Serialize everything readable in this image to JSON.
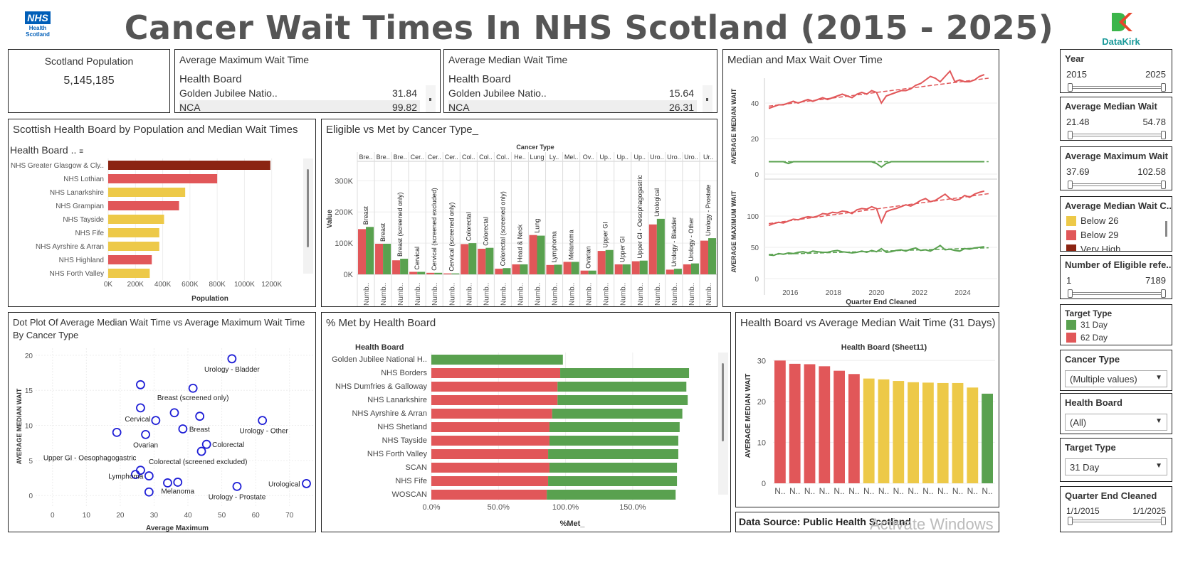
{
  "header": {
    "title": "Cancer Wait Times In NHS Scotland (2015 - 2025)",
    "nhs_logo_text": "NHS",
    "nhs_logo_sub1": "Health",
    "nhs_logo_sub2": "Scotland",
    "datakirk_logo": "DataKirk"
  },
  "kpi_population": {
    "label": "Scotland Population",
    "value": "5,145,185"
  },
  "avg_max_table": {
    "title": "Average Maximum Wait Time",
    "header": "Health Board",
    "rows": [
      {
        "name": "Golden Jubilee Natio..",
        "value": "31.84"
      },
      {
        "name": "NCA",
        "value": "99.82"
      }
    ]
  },
  "avg_median_table": {
    "title": "Average Median Wait Time",
    "header": "Health Board",
    "rows": [
      {
        "name": "Golden Jubilee Natio..",
        "value": "15.64"
      },
      {
        "name": "NCA",
        "value": "26.31"
      }
    ]
  },
  "population_chart": {
    "title": "Scottish Health Board by Population and Median Wait Times",
    "header": "Health Board ..",
    "xlabel": "Population",
    "ticks": [
      "0K",
      "200K",
      "400K",
      "600K",
      "800K",
      "1000K",
      "1200K"
    ],
    "xmax": 1400000,
    "chart_data": {
      "type": "bar",
      "categories": [
        "NHS Greater Glasgow & Cly..",
        "NHS Lothian",
        "NHS Lanarkshire",
        "NHS Grampian",
        "NHS Tayside",
        "NHS Fife",
        "NHS Ayrshire & Arran",
        "NHS Highland",
        "NHS Forth Valley"
      ],
      "values": [
        1190000,
        800000,
        565000,
        520000,
        410000,
        375000,
        375000,
        320000,
        305000
      ],
      "colors": [
        "#8B2412",
        "#E15759",
        "#EDC948",
        "#E15759",
        "#EDC948",
        "#EDC948",
        "#EDC948",
        "#E15759",
        "#EDC948"
      ]
    }
  },
  "eligible_chart": {
    "title": "Eligible vs Met by Cancer Type_",
    "axis_title": "Cancer Type",
    "ylabel": "Value",
    "yticks": [
      "0K",
      "100K",
      "200K",
      "300K"
    ],
    "col_headers": [
      "Bre..",
      "Bre..",
      "Bre..",
      "Cer..",
      "Cer..",
      "Cer..",
      "Col..",
      "Col..",
      "Col..",
      "He..",
      "Lung",
      "Ly..",
      "Mel..",
      "Ov..",
      "Up..",
      "Up..",
      "Up..",
      "Uro..",
      "Uro..",
      "Uro..",
      "Ur.."
    ],
    "bottom_label": "Numb..",
    "chart_data": {
      "type": "bar",
      "categories": [
        "Breast",
        "Breast",
        "Breast (screened only)",
        "Cervical",
        "Cervical (screened excluded)",
        "Cervical (screened only)",
        "Colorectal",
        "Colorectal",
        "Colorectal (screened only)",
        "Head & Neck",
        "Lung",
        "Lymphoma",
        "Melanoma",
        "Ovarian",
        "Upper GI",
        "Upper GI",
        "Upper GI - Oesophagogastric",
        "Urological",
        "Urology - Bladder",
        "Urology - Other",
        "Urology - Prostate"
      ],
      "series": [
        {
          "name": "",
          "values": [
            145000,
            98000,
            45000,
            8000,
            5000,
            3000,
            97000,
            82000,
            18000,
            32000,
            126000,
            30000,
            40000,
            12000,
            75000,
            32000,
            42000,
            160000,
            15000,
            32000,
            108000
          ]
        },
        {
          "name": "",
          "values": [
            152000,
            98000,
            50000,
            8000,
            5000,
            3000,
            100000,
            85000,
            20000,
            32000,
            124000,
            31000,
            40000,
            12000,
            78000,
            32000,
            44000,
            178000,
            18000,
            35000,
            116000
          ]
        }
      ],
      "ymax": 360000
    }
  },
  "median_max_chart": {
    "title": "Median and Max Wait Over Time",
    "ylabel_top": "AVERAGE MEDIAN WAIT",
    "ylabel_bottom": "AVERAGE MAXIMUM WAIT",
    "xlabel": "Quarter End Cleaned",
    "xticks": [
      "2016",
      "2018",
      "2020",
      "2022",
      "2024"
    ],
    "yticks_top": [
      "0",
      "20",
      "40"
    ],
    "yticks_bottom": [
      "0",
      "50",
      "100"
    ],
    "chart_data": {
      "type": "line",
      "x_start": 2015.0,
      "x_end": 2025.0,
      "median_62": [
        37,
        38,
        39,
        39,
        40,
        41,
        40,
        41,
        42,
        41,
        42,
        43,
        42,
        43,
        44,
        45,
        44,
        43,
        45,
        46,
        45,
        47,
        46,
        40,
        44,
        45,
        46,
        47,
        47,
        48,
        50,
        51,
        53,
        55,
        54,
        52,
        55,
        58,
        52,
        53,
        52,
        52,
        53,
        55,
        56
      ],
      "median_31": [
        7,
        7,
        7,
        7,
        6,
        7,
        7,
        7,
        7,
        7,
        7,
        7,
        7,
        7,
        7,
        7,
        7,
        7,
        7,
        7,
        7,
        7,
        6,
        4,
        6,
        7,
        7,
        7,
        7,
        7,
        7,
        7,
        7,
        7,
        7,
        7,
        7,
        7,
        7,
        7,
        7,
        7,
        7,
        7,
        7
      ],
      "max_62": [
        85,
        88,
        90,
        89,
        92,
        95,
        94,
        97,
        99,
        98,
        100,
        104,
        103,
        106,
        105,
        108,
        107,
        104,
        110,
        112,
        111,
        115,
        112,
        90,
        107,
        110,
        112,
        115,
        118,
        116,
        120,
        125,
        128,
        123,
        125,
        130,
        135,
        128,
        125,
        127,
        133,
        130,
        135,
        138,
        140
      ],
      "max_31": [
        38,
        37,
        40,
        39,
        41,
        40,
        42,
        43,
        41,
        44,
        43,
        42,
        42,
        44,
        45,
        43,
        42,
        41,
        42,
        44,
        42,
        45,
        43,
        48,
        42,
        43,
        45,
        46,
        44,
        47,
        49,
        45,
        46,
        44,
        48,
        53,
        46,
        47,
        45,
        44,
        48,
        47,
        49,
        50,
        51
      ]
    }
  },
  "filters": {
    "year": {
      "title": "Year",
      "min": "2015",
      "max": "2025"
    },
    "avg_median": {
      "title": "Average Median Wait",
      "min": "21.48",
      "max": "54.78"
    },
    "avg_max": {
      "title": "Average Maximum Wait",
      "min": "37.69",
      "max": "102.58"
    },
    "median_cat": {
      "title": "Average Median Wait C..",
      "items": [
        {
          "label": "Below 26",
          "color": "#EDC948"
        },
        {
          "label": "Below 29",
          "color": "#E15759"
        },
        {
          "label": "Very High",
          "color": "#8B2412"
        }
      ]
    },
    "eligible": {
      "title": "Number of Eligible refe..",
      "min": "1",
      "max": "7189"
    },
    "target_type_legend": {
      "title": "Target Type",
      "items": [
        {
          "label": "31 Day",
          "color": "#59A14F"
        },
        {
          "label": "62 Day",
          "color": "#E15759"
        }
      ]
    },
    "cancer_type": {
      "title": "Cancer Type",
      "value": "(Multiple values)"
    },
    "health_board": {
      "title": "Health Board",
      "value": "(All)"
    },
    "target_type": {
      "title": "Target Type",
      "value": "31 Day"
    },
    "quarter": {
      "title": "Quarter End Cleaned",
      "min": "1/1/2015",
      "max": "1/1/2025"
    }
  },
  "dot_plot": {
    "title_line1": "Dot Plot Of Average Median Wait Time vs Average Maximum Wait Time",
    "title_line2": "By Cancer Type",
    "xlabel": "Average Maximum",
    "ylabel": "AVERAGE MEDIAN WAIT",
    "xticks": [
      "0",
      "10",
      "20",
      "30",
      "40",
      "50",
      "60",
      "70"
    ],
    "yticks": [
      "0",
      "5",
      "10",
      "15",
      "20"
    ],
    "chart_data": {
      "type": "scatter",
      "xlim": [
        -5,
        77
      ],
      "ylim": [
        -1.5,
        21
      ],
      "points": [
        {
          "x": 53,
          "y": 19.5,
          "label": "Urology - Bladder"
        },
        {
          "x": 26,
          "y": 15.8,
          "label": ""
        },
        {
          "x": 41.5,
          "y": 15.3,
          "label": "Breast (screened only)"
        },
        {
          "x": 26,
          "y": 12.5,
          "label": "Cervical"
        },
        {
          "x": 36,
          "y": 11.8,
          "label": ""
        },
        {
          "x": 43.5,
          "y": 11.3,
          "label": ""
        },
        {
          "x": 30.5,
          "y": 10.7,
          "label": ""
        },
        {
          "x": 62,
          "y": 10.7,
          "label": "Urology - Other"
        },
        {
          "x": 38.5,
          "y": 9.5,
          "label": "Breast"
        },
        {
          "x": 19,
          "y": 9.0,
          "label": ""
        },
        {
          "x": 27.5,
          "y": 8.7,
          "label": "Ovarian"
        },
        {
          "x": 45.5,
          "y": 7.3,
          "label": "Colorectal"
        },
        {
          "x": 44,
          "y": 6.3,
          "label": "Colorectal (screened excluded)"
        },
        {
          "x": 26,
          "y": 3.6,
          "label": "Upper GI - Oesophagogastric"
        },
        {
          "x": 24.5,
          "y": 3.0,
          "label": ""
        },
        {
          "x": 28.5,
          "y": 2.8,
          "label": "Lymphoma"
        },
        {
          "x": 34,
          "y": 1.8,
          "label": ""
        },
        {
          "x": 37,
          "y": 1.9,
          "label": "Melanoma"
        },
        {
          "x": 54.5,
          "y": 1.3,
          "label": "Urology - Prostate"
        },
        {
          "x": 75,
          "y": 1.7,
          "label": "Urological"
        },
        {
          "x": 28.5,
          "y": 0.5,
          "label": ""
        }
      ]
    }
  },
  "pct_met": {
    "title": "% Met by Health Board",
    "header": "Health Board",
    "xlabel": "%Met_",
    "xticks": [
      "0.0%",
      "50.0%",
      "100.0%",
      "150.0%"
    ],
    "chart_data": {
      "type": "bar",
      "categories": [
        "Golden Jubilee National H..",
        "NHS Borders",
        "NHS Dumfries & Galloway",
        "NHS Lanarkshire",
        "NHS Ayrshire & Arran",
        "NHS Shetland",
        "NHS Tayside",
        "NHS Forth Valley",
        "SCAN",
        "NHS Fife",
        "WOSCAN"
      ],
      "series": [
        {
          "name": "62 Day",
          "values": [
            0,
            96,
            94,
            94,
            90,
            88,
            88,
            87,
            88,
            87,
            86
          ]
        },
        {
          "name": "31 Day",
          "values": [
            98,
            96,
            96,
            97,
            97,
            97,
            96,
            97,
            95,
            96,
            96
          ]
        }
      ],
      "xmax": 210
    }
  },
  "hb_median": {
    "title": "Health Board vs Average Median Wait Time (31 Days)",
    "subtitle": "Health Board (Sheet11)",
    "ylabel": "AVERAGE MEDIAN WAIT",
    "yticks": [
      "0",
      "10",
      "20",
      "30"
    ],
    "bar_label": "N..",
    "chart_data": {
      "type": "bar",
      "values": [
        30.0,
        29.2,
        29.1,
        28.6,
        27.5,
        26.7,
        25.6,
        25.4,
        25.0,
        24.7,
        24.6,
        24.5,
        24.5,
        23.4,
        21.9
      ],
      "colors": [
        "#E15759",
        "#E15759",
        "#E15759",
        "#E15759",
        "#E15759",
        "#E15759",
        "#EDC948",
        "#EDC948",
        "#EDC948",
        "#EDC948",
        "#EDC948",
        "#EDC948",
        "#EDC948",
        "#EDC948",
        "#59A14F"
      ],
      "ymax": 33
    }
  },
  "data_source": "Data Source: Public Health Scotland",
  "watermark": "Activate Windows"
}
